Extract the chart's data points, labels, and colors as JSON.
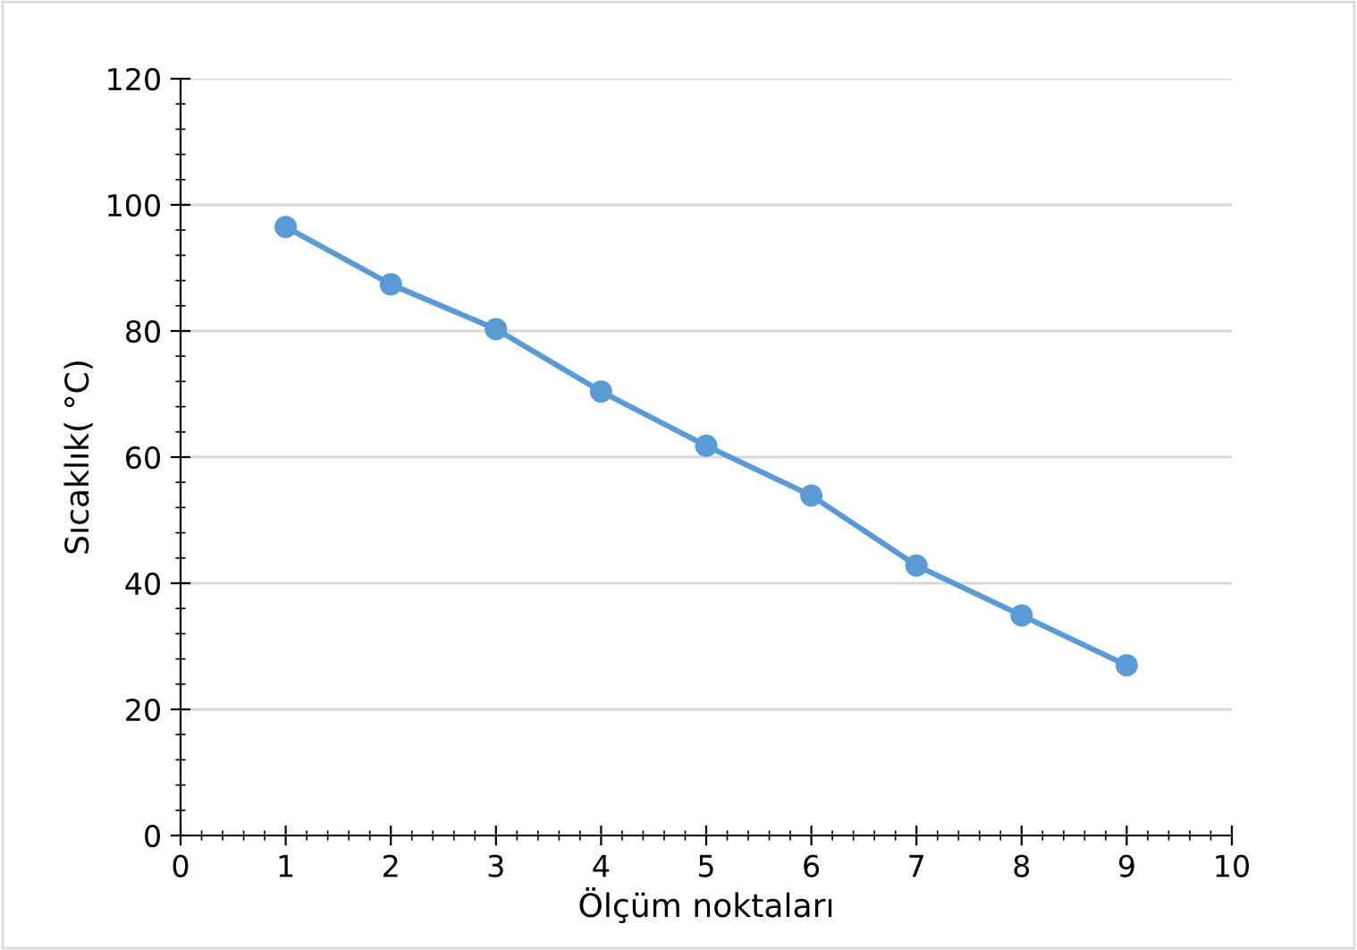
{
  "chart_data": {
    "type": "line",
    "xlabel": "Ölçüm noktaları",
    "ylabel": "Sıcaklık( °C)",
    "x": [
      1,
      2,
      3,
      4,
      5,
      6,
      7,
      8,
      9
    ],
    "series": [
      {
        "color": "#5b9bd5",
        "values": [
          96.5,
          87.4,
          80.3,
          70.4,
          61.8,
          53.9,
          42.8,
          34.9,
          27.0
        ]
      }
    ],
    "xlim": [
      0,
      10
    ],
    "xticks": [
      0,
      1,
      2,
      3,
      4,
      5,
      6,
      7,
      8,
      9,
      10
    ],
    "ylim": [
      0,
      120
    ],
    "yticks": [
      0,
      20,
      40,
      60,
      80,
      100,
      120
    ],
    "grid": "y",
    "marker": "circle",
    "line_style": "solid",
    "legend": false
  }
}
